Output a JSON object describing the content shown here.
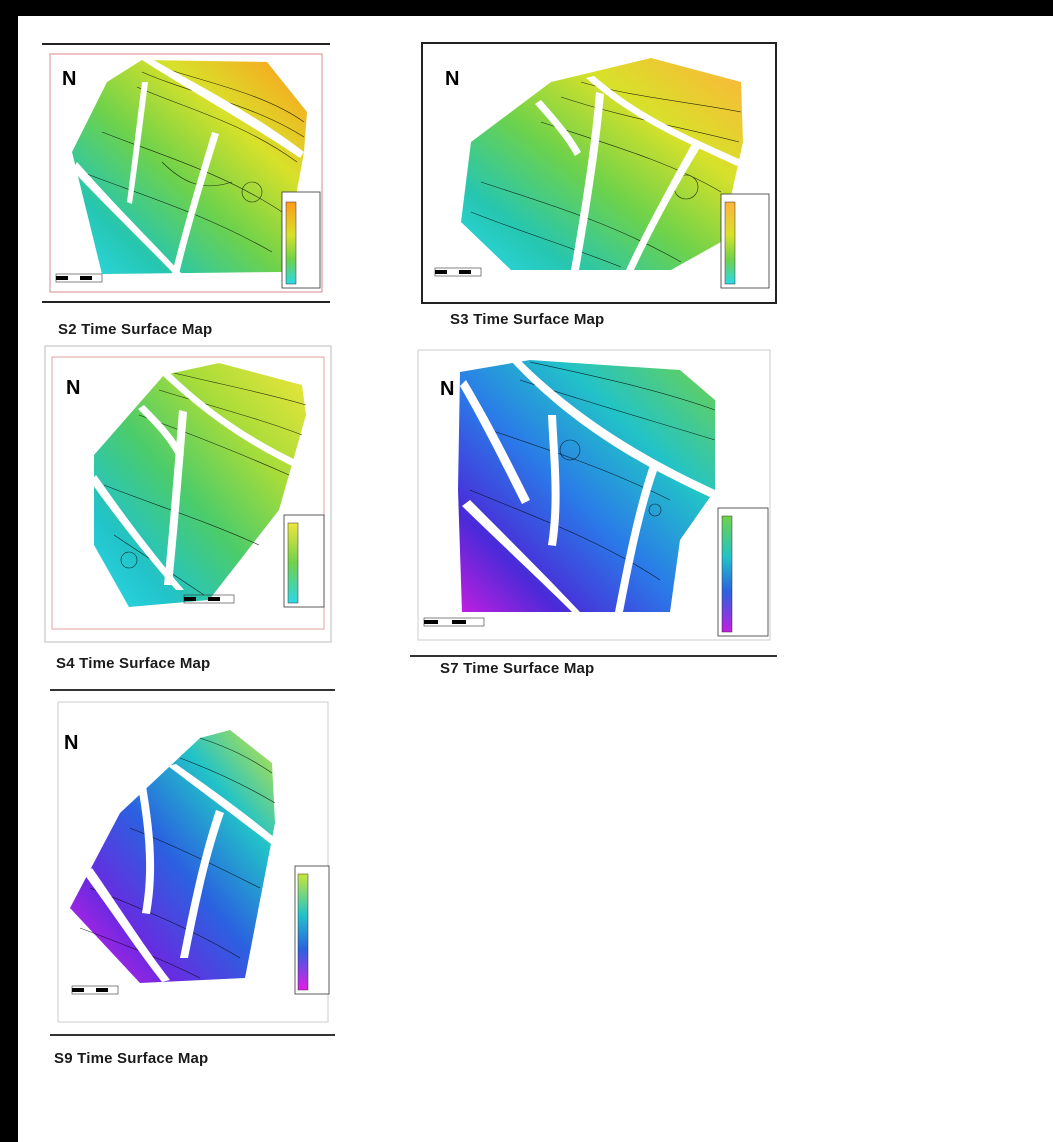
{
  "north_label": "N",
  "maps": [
    {
      "id": "s2",
      "caption": "S2 Time Surface Map"
    },
    {
      "id": "s3",
      "caption": "S3 Time Surface Map"
    },
    {
      "id": "s4",
      "caption": "S4 Time Surface Map"
    },
    {
      "id": "s7",
      "caption": "S7 Time Surface Map"
    },
    {
      "id": "s9",
      "caption": "S9 Time Surface Map"
    }
  ],
  "colors": {
    "fault": "#ffffff",
    "frame_border": "#000000",
    "s2_gradient": [
      "#ff9a1e",
      "#d8e12a",
      "#6fd24a",
      "#26c6b0",
      "#2ad8e8"
    ],
    "s7_gradient": [
      "#6fd24a",
      "#22c3c8",
      "#2a7ae8",
      "#4a2ad8",
      "#c21ee0"
    ],
    "s9_gradient": [
      "#c8e63a",
      "#22c3c8",
      "#2a62e0",
      "#6a2ae0",
      "#e01ee8"
    ]
  }
}
